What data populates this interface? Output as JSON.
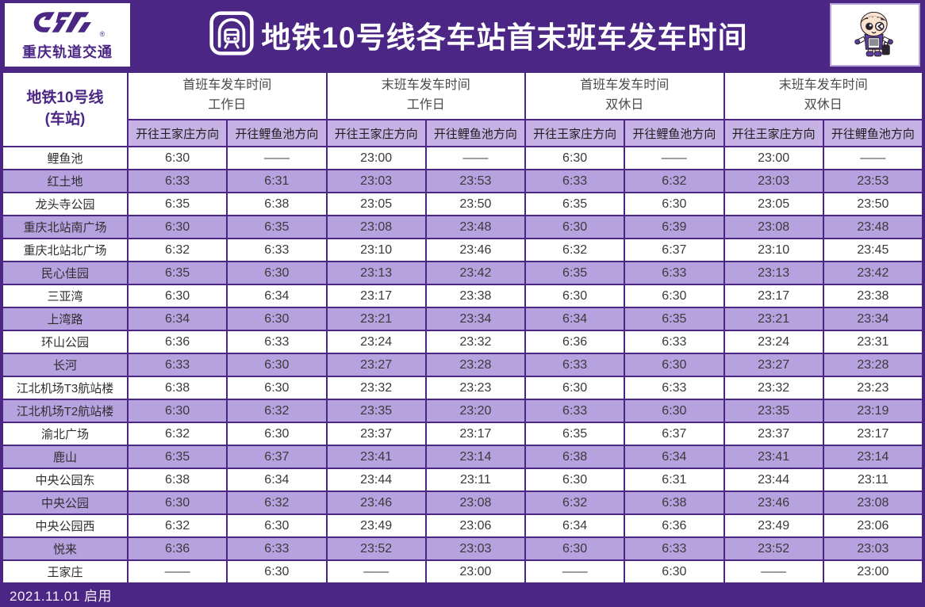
{
  "brand": {
    "logo_text": "重庆轨道交通",
    "registered": "®"
  },
  "banner": {
    "title": "地铁10号线各车站首末班车发车时间"
  },
  "corner": {
    "line1": "地铁10号线",
    "line2": "(车站)"
  },
  "footer": {
    "note": "2021.11.01 启用"
  },
  "colors": {
    "deep_purple": "#4B2684",
    "row_purple": "#B7A2E0",
    "subheader_purple": "#C6B2E4",
    "white": "#FFFFFF"
  },
  "chart_data": {
    "type": "table",
    "title": "地铁10号线各车站首末班车发车时间",
    "column_groups": [
      {
        "line1": "首班车发车时间",
        "line2": "工作日"
      },
      {
        "line1": "末班车发车时间",
        "line2": "工作日"
      },
      {
        "line1": "首班车发车时间",
        "line2": "双休日"
      },
      {
        "line1": "末班车发车时间",
        "line2": "双休日"
      }
    ],
    "direction_columns": [
      "开往王家庄方向",
      "开往鲤鱼池方向",
      "开往王家庄方向",
      "开往鲤鱼池方向",
      "开往王家庄方向",
      "开往鲤鱼池方向",
      "开往王家庄方向",
      "开往鲤鱼池方向"
    ],
    "rows": [
      {
        "station": "鲤鱼池",
        "times": [
          "6:30",
          "——",
          "23:00",
          "——",
          "6:30",
          "——",
          "23:00",
          "——"
        ]
      },
      {
        "station": "红土地",
        "times": [
          "6:33",
          "6:31",
          "23:03",
          "23:53",
          "6:33",
          "6:32",
          "23:03",
          "23:53"
        ]
      },
      {
        "station": "龙头寺公园",
        "times": [
          "6:35",
          "6:38",
          "23:05",
          "23:50",
          "6:35",
          "6:30",
          "23:05",
          "23:50"
        ]
      },
      {
        "station": "重庆北站南广场",
        "times": [
          "6:30",
          "6:35",
          "23:08",
          "23:48",
          "6:30",
          "6:39",
          "23:08",
          "23:48"
        ]
      },
      {
        "station": "重庆北站北广场",
        "times": [
          "6:32",
          "6:33",
          "23:10",
          "23:46",
          "6:32",
          "6:37",
          "23:10",
          "23:45"
        ]
      },
      {
        "station": "民心佳园",
        "times": [
          "6:35",
          "6:30",
          "23:13",
          "23:42",
          "6:35",
          "6:33",
          "23:13",
          "23:42"
        ]
      },
      {
        "station": "三亚湾",
        "times": [
          "6:30",
          "6:34",
          "23:17",
          "23:38",
          "6:30",
          "6:30",
          "23:17",
          "23:38"
        ]
      },
      {
        "station": "上湾路",
        "times": [
          "6:34",
          "6:30",
          "23:21",
          "23:34",
          "6:34",
          "6:35",
          "23:21",
          "23:34"
        ]
      },
      {
        "station": "环山公园",
        "times": [
          "6:36",
          "6:33",
          "23:24",
          "23:32",
          "6:36",
          "6:33",
          "23:24",
          "23:31"
        ]
      },
      {
        "station": "长河",
        "times": [
          "6:33",
          "6:30",
          "23:27",
          "23:28",
          "6:33",
          "6:30",
          "23:27",
          "23:28"
        ]
      },
      {
        "station": "江北机场T3航站楼",
        "times": [
          "6:38",
          "6:30",
          "23:32",
          "23:23",
          "6:30",
          "6:33",
          "23:32",
          "23:23"
        ]
      },
      {
        "station": "江北机场T2航站楼",
        "times": [
          "6:30",
          "6:32",
          "23:35",
          "23:20",
          "6:33",
          "6:30",
          "23:35",
          "23:19"
        ]
      },
      {
        "station": "渝北广场",
        "times": [
          "6:32",
          "6:30",
          "23:37",
          "23:17",
          "6:35",
          "6:37",
          "23:37",
          "23:17"
        ]
      },
      {
        "station": "鹿山",
        "times": [
          "6:35",
          "6:37",
          "23:41",
          "23:14",
          "6:38",
          "6:34",
          "23:41",
          "23:14"
        ]
      },
      {
        "station": "中央公园东",
        "times": [
          "6:38",
          "6:34",
          "23:44",
          "23:11",
          "6:30",
          "6:31",
          "23:44",
          "23:11"
        ]
      },
      {
        "station": "中央公园",
        "times": [
          "6:30",
          "6:32",
          "23:46",
          "23:08",
          "6:32",
          "6:38",
          "23:46",
          "23:08"
        ]
      },
      {
        "station": "中央公园西",
        "times": [
          "6:32",
          "6:30",
          "23:49",
          "23:06",
          "6:34",
          "6:36",
          "23:49",
          "23:06"
        ]
      },
      {
        "station": "悦来",
        "times": [
          "6:36",
          "6:33",
          "23:52",
          "23:03",
          "6:30",
          "6:33",
          "23:52",
          "23:03"
        ]
      },
      {
        "station": "王家庄",
        "times": [
          "——",
          "6:30",
          "——",
          "23:00",
          "——",
          "6:30",
          "——",
          "23:00"
        ]
      }
    ],
    "effective_date_note": "2021.11.01 启用"
  }
}
